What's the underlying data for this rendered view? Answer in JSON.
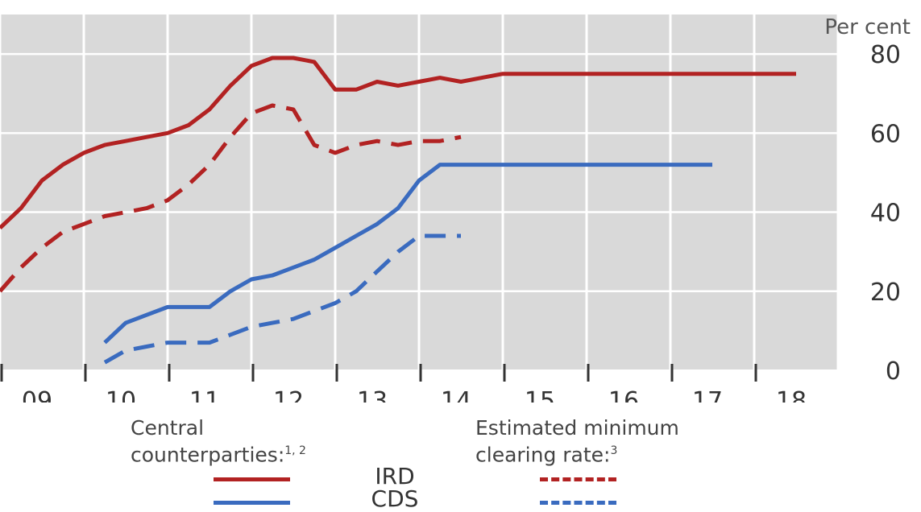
{
  "chart_data": {
    "type": "line",
    "unit_label": "Per cent",
    "categories": [
      "09",
      "10",
      "11",
      "12",
      "13",
      "14",
      "15",
      "16",
      "17",
      "18"
    ],
    "x_range": [
      2009.0,
      2019.0
    ],
    "ylim": [
      0,
      90
    ],
    "yticks": [
      0,
      20,
      40,
      60,
      80
    ],
    "grid": true,
    "background": "#d9d9d9",
    "series": [
      {
        "key": "ccp_ird",
        "color": "#b22222",
        "dash": "solid",
        "x": [
          2009.0,
          2009.25,
          2009.5,
          2009.75,
          2010.0,
          2010.25,
          2010.5,
          2010.75,
          2011.0,
          2011.25,
          2011.5,
          2011.75,
          2012.0,
          2012.25,
          2012.5,
          2012.75,
          2013.0,
          2013.25,
          2013.5,
          2013.75,
          2014.0,
          2014.25,
          2014.5,
          2014.75,
          2015.0,
          2015.25,
          2015.5,
          2015.75,
          2016.0,
          2016.25,
          2016.5,
          2016.75,
          2017.0,
          2017.25,
          2017.5,
          2017.75,
          2018.0,
          2018.25,
          2018.5
        ],
        "y": [
          36,
          41,
          48,
          52,
          55,
          57,
          58,
          59,
          60,
          62,
          66,
          72,
          77,
          79,
          79,
          78,
          71,
          71,
          73,
          72,
          73,
          74,
          73,
          74,
          75,
          75,
          75,
          75,
          75,
          75,
          75,
          75,
          75,
          75,
          75,
          75,
          75,
          75,
          75
        ]
      },
      {
        "key": "ccp_cds",
        "color": "#3a6bbf",
        "dash": "solid",
        "x": [
          2010.25,
          2010.5,
          2010.75,
          2011.0,
          2011.25,
          2011.5,
          2011.75,
          2012.0,
          2012.25,
          2012.5,
          2012.75,
          2013.0,
          2013.25,
          2013.5,
          2013.75,
          2014.0,
          2014.25,
          2014.5,
          2014.75,
          2015.0,
          2015.25,
          2015.5,
          2015.75,
          2016.0,
          2016.25,
          2016.5,
          2016.75,
          2017.0,
          2017.25,
          2017.5
        ],
        "y": [
          7,
          12,
          14,
          16,
          16,
          16,
          20,
          23,
          24,
          26,
          28,
          31,
          34,
          37,
          41,
          48,
          52,
          52,
          52,
          52,
          52,
          52,
          52,
          52,
          52,
          52,
          52,
          52,
          52,
          52
        ]
      },
      {
        "key": "min_ird",
        "color": "#b22222",
        "dash": "dashed",
        "x": [
          2009.0,
          2009.25,
          2009.5,
          2009.75,
          2010.0,
          2010.25,
          2010.5,
          2010.75,
          2011.0,
          2011.25,
          2011.5,
          2011.75,
          2012.0,
          2012.25,
          2012.5,
          2012.75,
          2013.0,
          2013.25,
          2013.5,
          2013.75,
          2014.0,
          2014.25,
          2014.5
        ],
        "y": [
          20,
          26,
          31,
          35,
          37,
          39,
          40,
          41,
          43,
          47,
          52,
          59,
          65,
          67,
          66,
          57,
          55,
          57,
          58,
          57,
          58,
          58,
          59
        ]
      },
      {
        "key": "min_cds",
        "color": "#3a6bbf",
        "dash": "dashed",
        "x": [
          2010.25,
          2010.5,
          2010.75,
          2011.0,
          2011.25,
          2011.5,
          2011.75,
          2012.0,
          2012.25,
          2012.5,
          2012.75,
          2013.0,
          2013.25,
          2013.5,
          2013.75,
          2014.0,
          2014.25,
          2014.5
        ],
        "y": [
          2,
          5,
          6,
          7,
          7,
          7,
          9,
          11,
          12,
          13,
          15,
          17,
          20,
          25,
          30,
          34,
          34,
          34
        ]
      }
    ],
    "legend": {
      "group1_text": "Central",
      "group1_text_line2": "counterparties:",
      "group1_sup": "1, 2",
      "group2_text": "Estimated minimum",
      "group2_text_line2": "clearing rate:",
      "group2_sup": "3",
      "row1_label": "IRD",
      "row2_label": "CDS"
    }
  }
}
